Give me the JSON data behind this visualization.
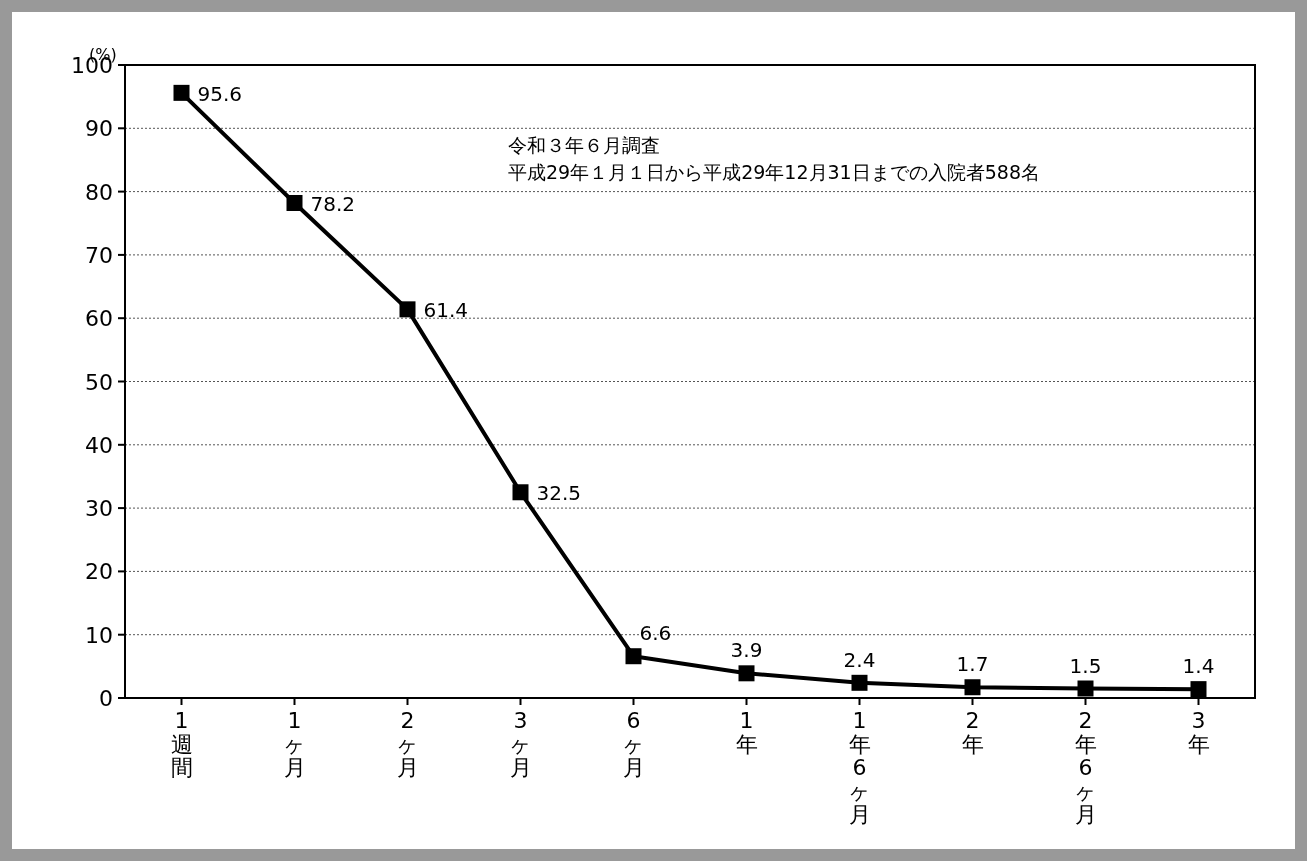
{
  "chart_data": {
    "type": "line",
    "ylabel": "(%)",
    "categories": [
      "1週間",
      "1ヶ月",
      "2ヶ月",
      "3ヶ月",
      "6ヶ月",
      "1年",
      "1年6ヶ月",
      "2年",
      "2年6ヶ月",
      "3年"
    ],
    "values": [
      95.6,
      78.2,
      61.4,
      32.5,
      6.6,
      3.9,
      2.4,
      1.7,
      1.5,
      1.4
    ],
    "color": "#000000",
    "marker": "square",
    "line_style": "solid",
    "data_labels": true,
    "ylim": [
      0,
      100
    ],
    "yticks": [
      0,
      10,
      20,
      30,
      40,
      50,
      60,
      70,
      80,
      90,
      100
    ],
    "grid": "y",
    "annotations": [
      "令和３年６月調査",
      "平成29年１月１日から平成29年12月31日までの入院者588名"
    ]
  }
}
